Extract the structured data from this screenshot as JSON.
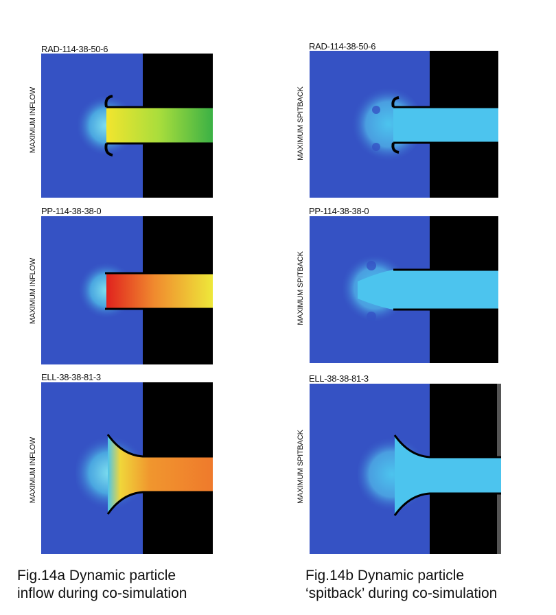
{
  "figure_a": {
    "caption_line1": "Fig.14a Dynamic particle",
    "caption_line2": "inflow during co-simulation",
    "panels": [
      {
        "title": "RAD-114-38-50-6",
        "side_label": "MAXIMUM INFLOW",
        "colors": {
          "background": "#3552c4",
          "wall": "#000000",
          "flow_start": "#f2e52e",
          "flow_mid": "#a8dd3c",
          "flow_end": "#3bb145"
        }
      },
      {
        "title": "PP-114-38-38-0",
        "side_label": "MAXIMUM INFLOW",
        "colors": {
          "background": "#3552c4",
          "wall": "#000000",
          "flow_start": "#e0221e",
          "flow_mid": "#f08a2e",
          "flow_end": "#eee83a"
        }
      },
      {
        "title": "ELL-38-38-81-3",
        "side_label": "MAXIMUM INFLOW",
        "colors": {
          "background": "#3552c4",
          "wall": "#000000",
          "flow_start": "#f0d63a",
          "flow_mid": "#f0962e",
          "flow_end": "#ef7a2c"
        }
      }
    ]
  },
  "figure_b": {
    "caption_line1": "Fig.14b Dynamic particle",
    "caption_line2": "‘spitback’ during co-simulation",
    "panels": [
      {
        "title": "RAD-114-38-50-6",
        "side_label": "MAXIMUM SPITBACK",
        "colors": {
          "background": "#3552c4",
          "wall": "#000000",
          "flow": "#4cc4ee"
        }
      },
      {
        "title": "PP-114-38-38-0",
        "side_label": "MAXIMUM SPITBACK",
        "colors": {
          "background": "#3552c4",
          "wall": "#000000",
          "flow": "#4cc4ee"
        }
      },
      {
        "title": "ELL-38-38-81-3",
        "side_label": "MAXIMUM SPITBACK",
        "colors": {
          "background": "#3552c4",
          "wall": "#000000",
          "flow": "#4cc4ee"
        }
      }
    ]
  }
}
